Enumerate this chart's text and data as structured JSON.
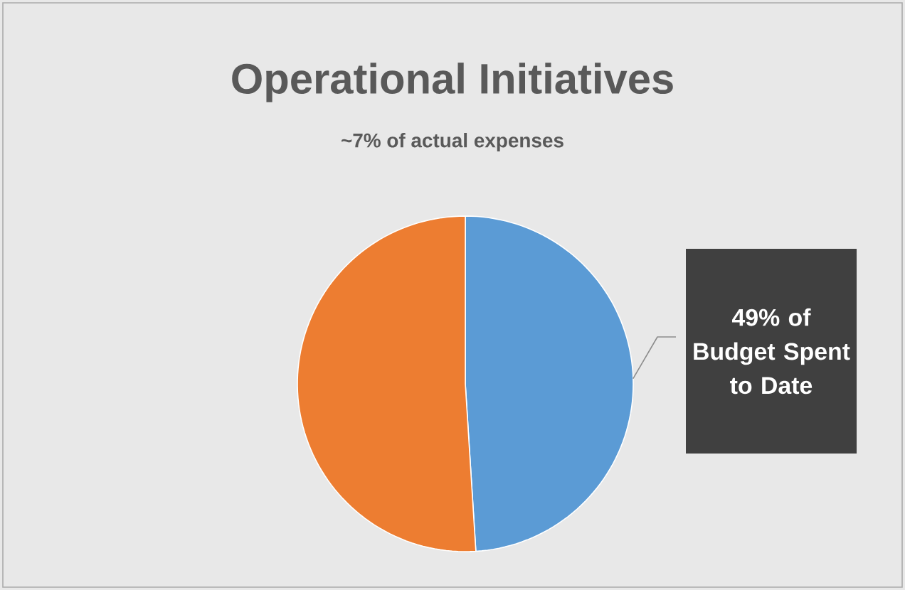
{
  "chart_data": {
    "type": "pie",
    "title": "Operational Initiatives",
    "subtitle": "~7% of actual expenses",
    "categories": [
      null,
      null
    ],
    "values": [
      49,
      51
    ],
    "colors": [
      "#5b9bd5",
      "#ed7d31"
    ],
    "value_labels": [
      "49% of Budget Spent to Date",
      null
    ]
  }
}
